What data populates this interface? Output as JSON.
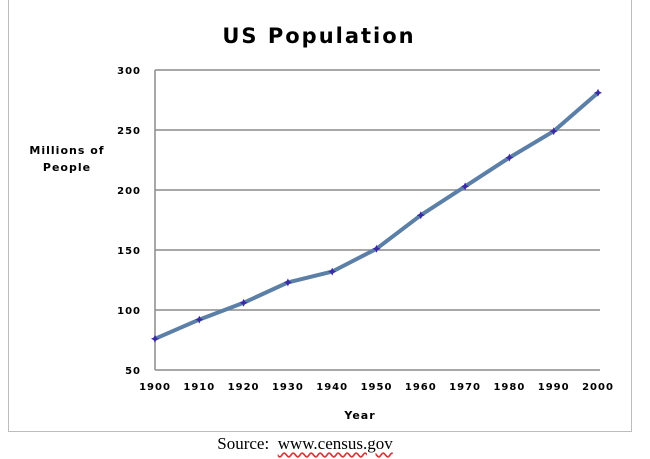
{
  "chart_data": {
    "type": "line",
    "title": "US Population",
    "xlabel": "Year",
    "ylabel": "Millions of People",
    "x": [
      1900,
      1910,
      1920,
      1930,
      1940,
      1950,
      1960,
      1970,
      1980,
      1990,
      2000
    ],
    "series": [
      {
        "values": [
          76,
          92,
          106,
          123,
          132,
          151,
          179,
          203,
          227,
          249,
          281
        ]
      }
    ],
    "yticks": [
      50,
      100,
      150,
      200,
      250,
      300
    ],
    "ylim": [
      50,
      300
    ],
    "xlim": [
      1900,
      2000
    ],
    "grid": true,
    "line_color": "#5b7fa6",
    "marker_color": "#3b2aa6",
    "gridline_color": "#8c8c8c"
  },
  "source": {
    "prefix": "Source:",
    "url": "www.census.gov"
  }
}
